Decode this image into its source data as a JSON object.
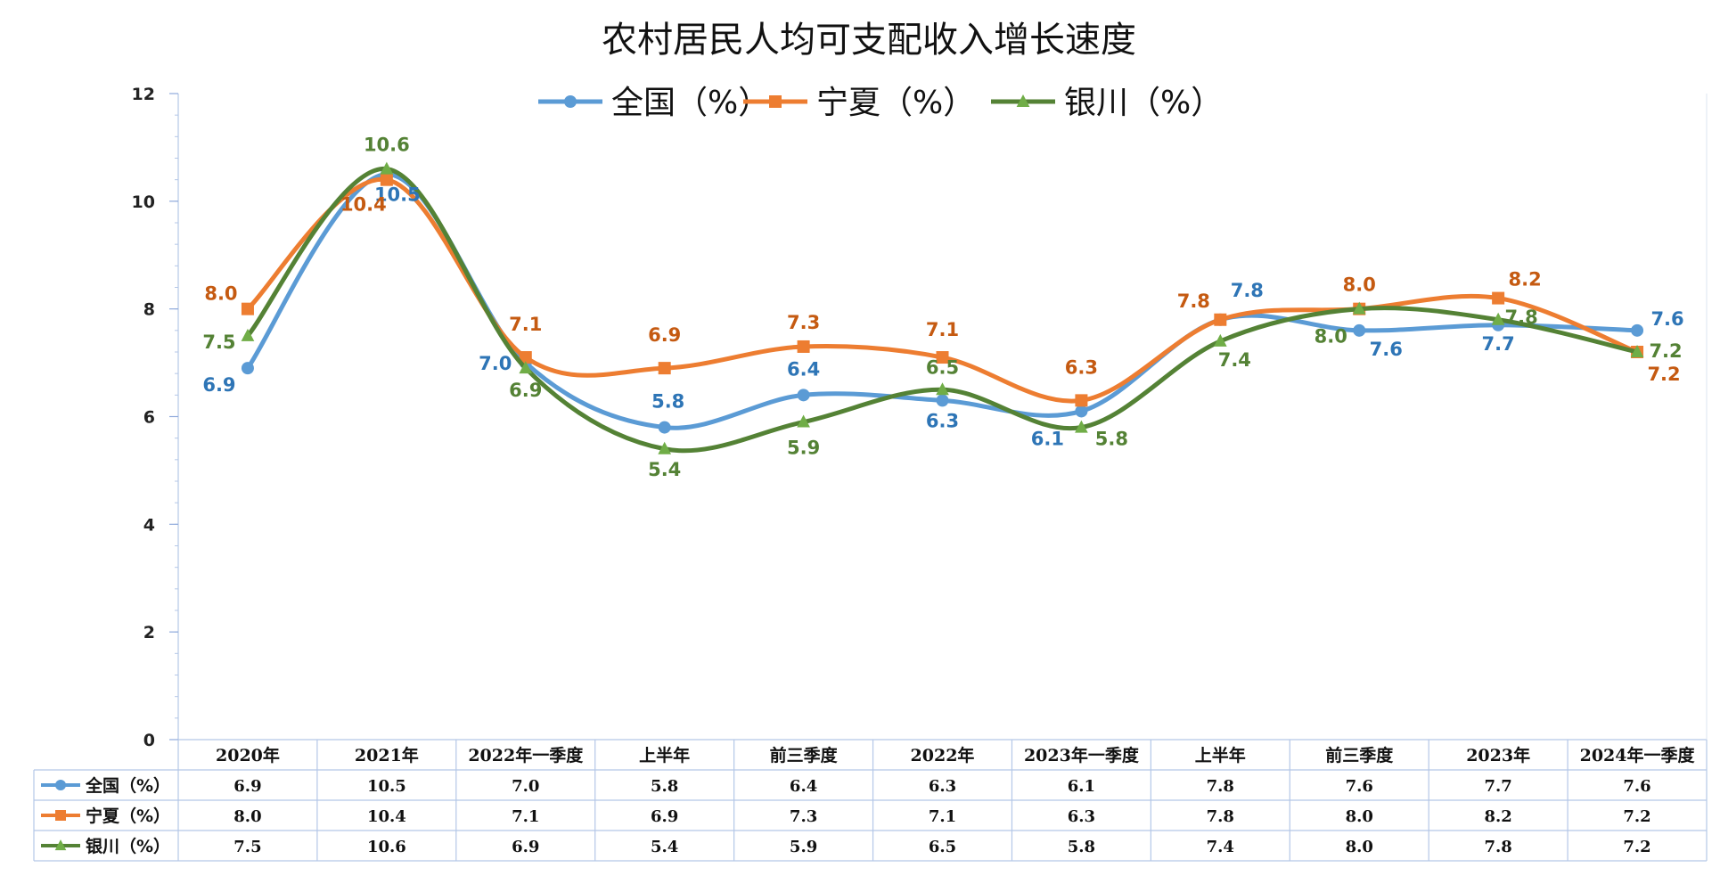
{
  "chart_data": {
    "type": "line",
    "title": "农村居民人均可支配收入增长速度",
    "categories": [
      "2020年",
      "2021年",
      "2022年一季度",
      "上半年",
      "前三季度",
      "2022年",
      "2023年一季度",
      "上半年",
      "前三季度",
      "2023年",
      "2024年一季度"
    ],
    "series": [
      {
        "name": "全国（%）",
        "color": "#5b9bd5",
        "label_color": "#2e75b6",
        "marker": "circle",
        "values": [
          6.9,
          10.5,
          7.0,
          5.8,
          6.4,
          6.3,
          6.1,
          7.8,
          7.6,
          7.7,
          7.6
        ]
      },
      {
        "name": "宁夏（%）",
        "color": "#ed7d31",
        "label_color": "#c55a11",
        "marker": "square",
        "values": [
          8.0,
          10.4,
          7.1,
          6.9,
          7.3,
          7.1,
          6.3,
          7.8,
          8.0,
          8.2,
          7.2
        ]
      },
      {
        "name": "银川（%）",
        "color": "#548235",
        "label_color": "#548235",
        "marker": "triangle",
        "values": [
          7.5,
          10.6,
          6.9,
          5.4,
          5.9,
          6.5,
          5.8,
          7.4,
          8.0,
          7.8,
          7.2
        ]
      }
    ],
    "ylim": [
      0,
      12
    ],
    "yticks": [
      "0",
      "2",
      "4",
      "6",
      "8",
      "10",
      "12"
    ],
    "value_labels": [
      [
        "6.9",
        "10.5",
        "7.0",
        "5.8",
        "6.4",
        "6.3",
        "6.1",
        "7.8",
        "7.6",
        "7.7",
        "7.6"
      ],
      [
        "8.0",
        "10.4",
        "7.1",
        "6.9",
        "7.3",
        "7.1",
        "6.3",
        "7.8",
        "8.0",
        "8.2",
        "7.2"
      ],
      [
        "7.5",
        "10.6",
        "6.9",
        "5.4",
        "5.9",
        "6.5",
        "5.8",
        "7.4",
        "8.0",
        "7.8",
        "7.2"
      ]
    ],
    "legend_position": "top",
    "smooth_lines": true,
    "grid": false,
    "data_table": true
  }
}
